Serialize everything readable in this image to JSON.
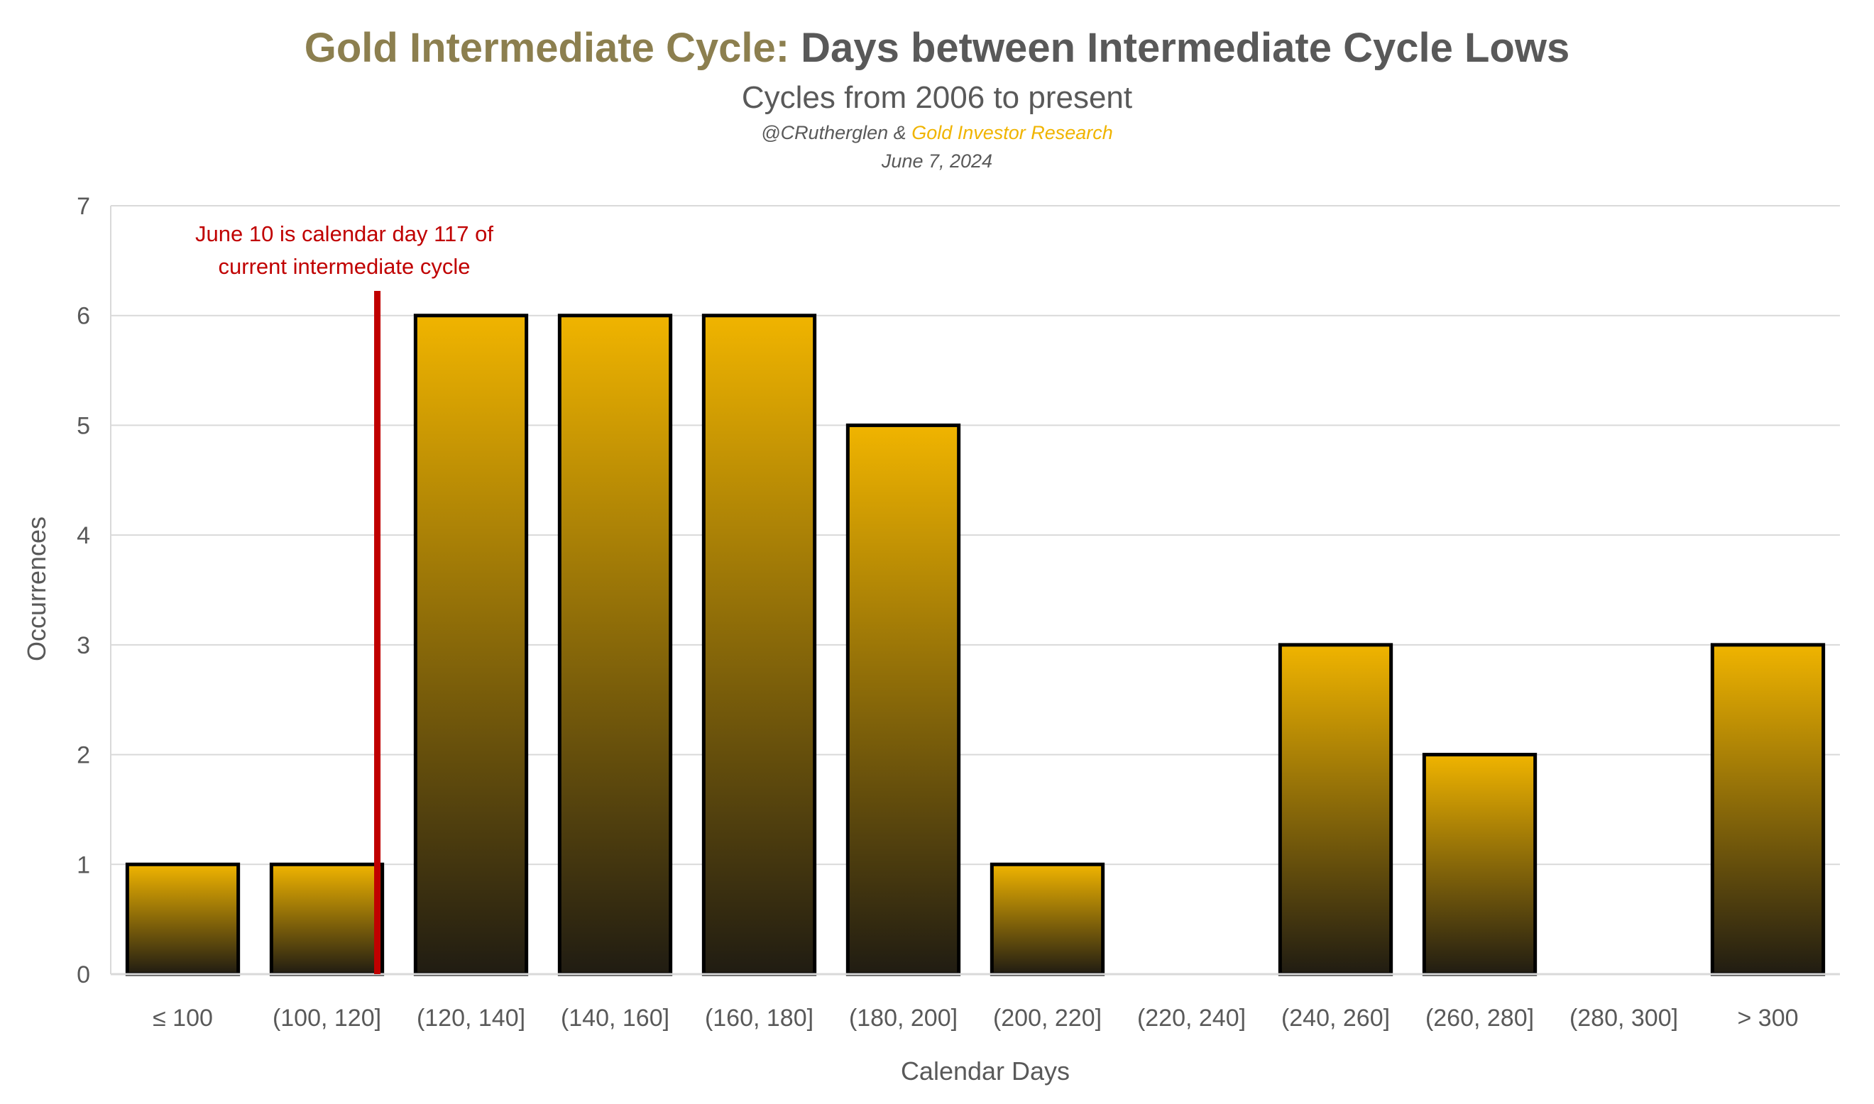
{
  "chart_data": {
    "type": "bar",
    "title_part1": "Gold Intermediate Cycle:",
    "title_part2": "Days between Intermediate Cycle Lows",
    "subtitle": "Cycles from 2006 to present",
    "credit_prefix": "@CRutherglen &",
    "credit_highlight": "Gold Investor Research",
    "date": "June 7, 2024",
    "xlabel": "Calendar Days",
    "ylabel": "Occurrences",
    "categories": [
      "≤ 100",
      "(100, 120]",
      "(120, 140]",
      "(140, 160]",
      "(160, 180]",
      "(180, 200]",
      "(200, 220]",
      "(220, 240]",
      "(240, 260]",
      "(260, 280]",
      "(280, 300]",
      "> 300"
    ],
    "values": [
      1,
      1,
      6,
      6,
      6,
      5,
      1,
      0,
      3,
      2,
      0,
      3
    ],
    "yticks": [
      "0",
      "1",
      "2",
      "3",
      "4",
      "5",
      "6",
      "7"
    ],
    "ylim": [
      0,
      7
    ],
    "grid": true,
    "annotation": {
      "day": 117,
      "line1": "June 10 is calendar day 117 of",
      "line2": "current intermediate cycle"
    },
    "colors": {
      "title_gold": "#8c7f4f",
      "title_gray": "#595959",
      "credit_gold": "#f0b400",
      "bar_top": "#f0b400",
      "bar_bottom": "#201c12",
      "bar_outline": "#000000",
      "annotation": "#c00000",
      "grid": "#d9d9d9"
    }
  }
}
